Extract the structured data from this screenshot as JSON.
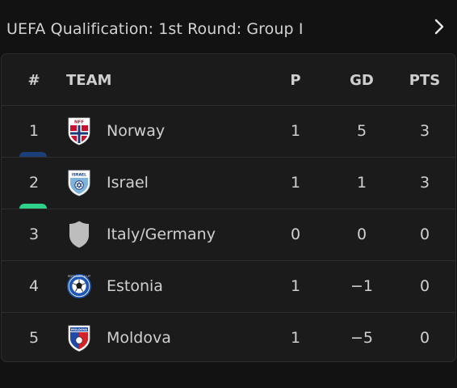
{
  "header": {
    "title": "UEFA Qualification: 1st Round: Group I",
    "chevron_icon": "chevron-right-icon"
  },
  "table": {
    "columns": {
      "rank": "#",
      "team": "TEAM",
      "played": "P",
      "goal_diff": "GD",
      "points": "PTS"
    },
    "rows": [
      {
        "rank": "1",
        "team": "Norway",
        "played": "1",
        "gd": "5",
        "pts": "3",
        "crest_icon": "norway-crest-icon",
        "crest_text": "NFF",
        "marker_color": "#1c3f7a"
      },
      {
        "rank": "2",
        "team": "Israel",
        "played": "1",
        "gd": "1",
        "pts": "3",
        "crest_icon": "israel-crest-icon",
        "crest_text": "ISRAEL",
        "marker_color": "#2fd08a"
      },
      {
        "rank": "3",
        "team": "Italy/Germany",
        "played": "0",
        "gd": "0",
        "pts": "0",
        "crest_icon": "placeholder-shield-icon"
      },
      {
        "rank": "4",
        "team": "Estonia",
        "played": "1",
        "gd": "−1",
        "pts": "0",
        "crest_icon": "estonia-crest-icon",
        "crest_text": "EESTI JALGPALLI LIIT"
      },
      {
        "rank": "5",
        "team": "Moldova",
        "played": "1",
        "gd": "−5",
        "pts": "0",
        "crest_icon": "moldova-crest-icon",
        "crest_text": "MOLDOVA"
      }
    ]
  },
  "colors": {
    "background": "#121212",
    "card": "#1b1b1b",
    "divider": "#2e2e2e",
    "text": "#d0d0d0",
    "promotion_marker": "#1c3f7a",
    "qualify_marker": "#2fd08a"
  }
}
